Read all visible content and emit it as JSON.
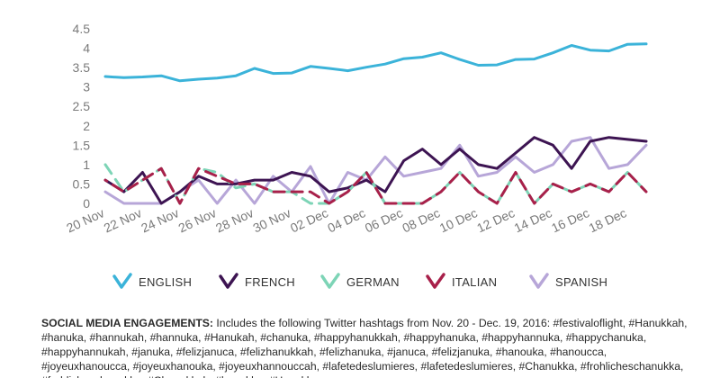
{
  "chart_data": {
    "type": "line",
    "yticks": [
      "0",
      "0.5",
      "1",
      "1.5",
      "2",
      "2.5",
      "3",
      "3.5",
      "4",
      "4.5"
    ],
    "ylim": [
      0,
      4.5
    ],
    "x_tick_labels": [
      "20 Nov",
      "22 Nov",
      "24 Nov",
      "26 Nov",
      "28 Nov",
      "30 Nov",
      "02 Dec",
      "04 Dec",
      "06 Dec",
      "08 Dec",
      "10 Dec",
      "12 Dec",
      "14 Dec",
      "16 Dec",
      "18 Dec"
    ],
    "x": [
      "20 Nov",
      "21 Nov",
      "22 Nov",
      "23 Nov",
      "24 Nov",
      "25 Nov",
      "26 Nov",
      "27 Nov",
      "28 Nov",
      "29 Nov",
      "30 Nov",
      "01 Dec",
      "02 Dec",
      "03 Dec",
      "04 Dec",
      "05 Dec",
      "06 Dec",
      "07 Dec",
      "08 Dec",
      "09 Dec",
      "10 Dec",
      "11 Dec",
      "12 Dec",
      "13 Dec",
      "14 Dec",
      "15 Dec",
      "16 Dec",
      "17 Dec",
      "18 Dec",
      "19 Dec"
    ],
    "grid": false,
    "legend_position": "bottom",
    "series": [
      {
        "name": "ENGLISH",
        "color": "#3bb3d9",
        "values": [
          3.27,
          3.24,
          3.26,
          3.29,
          3.16,
          3.2,
          3.23,
          3.29,
          3.48,
          3.35,
          3.36,
          3.53,
          3.48,
          3.42,
          3.51,
          3.59,
          3.73,
          3.77,
          3.88,
          3.71,
          3.56,
          3.57,
          3.71,
          3.72,
          3.88,
          4.07,
          3.95,
          3.93,
          4.1,
          4.11
        ]
      },
      {
        "name": "FRENCH",
        "color": "#3d1452",
        "values": [
          0.6,
          0.3,
          0.8,
          0.0,
          0.3,
          0.7,
          0.5,
          0.5,
          0.6,
          0.6,
          0.8,
          0.7,
          0.3,
          0.4,
          0.6,
          0.3,
          1.1,
          1.4,
          1.0,
          1.4,
          1.0,
          0.9,
          1.3,
          1.7,
          1.5,
          0.9,
          1.6,
          1.7,
          1.65,
          1.6
        ]
      },
      {
        "name": "GERMAN",
        "color": "#7dd4b6",
        "values": [
          1.0,
          0.3,
          0.6,
          0.9,
          0.0,
          0.9,
          0.8,
          0.4,
          0.5,
          0.3,
          0.3,
          0.0,
          0.0,
          0.3,
          0.8,
          0.0,
          0.0,
          0.0,
          0.3,
          0.8,
          0.3,
          0.0,
          0.8,
          0.0,
          0.5,
          0.3,
          0.5,
          0.3,
          0.8,
          0.3
        ]
      },
      {
        "name": "ITALIAN",
        "color": "#a8204a",
        "values": [
          0.6,
          0.3,
          0.6,
          0.9,
          0.0,
          0.9,
          0.7,
          0.5,
          0.5,
          0.3,
          0.3,
          0.3,
          0.0,
          0.3,
          0.8,
          0.0,
          0.0,
          0.0,
          0.3,
          0.8,
          0.3,
          0.0,
          0.8,
          0.0,
          0.5,
          0.3,
          0.5,
          0.3,
          0.8,
          0.3
        ]
      },
      {
        "name": "SPANISH",
        "color": "#b7a6d8",
        "values": [
          0.3,
          0.0,
          0.0,
          0.0,
          0.3,
          0.6,
          0.0,
          0.6,
          0.0,
          0.7,
          0.3,
          0.95,
          0.0,
          0.8,
          0.6,
          1.2,
          0.7,
          0.8,
          0.9,
          1.5,
          0.7,
          0.8,
          1.2,
          0.8,
          1.0,
          1.6,
          1.7,
          0.9,
          1.0,
          1.5
        ]
      }
    ]
  },
  "caption": {
    "heading": "SOCIAL MEDIA ENGAGEMENTS:",
    "text": " Includes the following Twitter hashtags from Nov. 20 - Dec. 19, 2016: #festivaloflight, #Hanukkah, #hanuka, #hannukah, #hannuka, #Hanukah, #chanuka, #happyhanukkah, #happyhanuka, #happyhannuka, #happychanuka, #happyhannukah, #januka, #felizjanuca, #felizhanukkah, #felizhanuka, #januca, #felizjanuka, #hanouka, #hanoucca, #joyeuxhanoucca, #joyeuxhanouka, #joyeuxhannouccah, #lafetedeslumieres, #lafetedeslumieres, #Chanukka, #frohlicheschanukka, #frohlicheschanukka, #Chanukkah, #hanukka, #Hanukka"
  }
}
